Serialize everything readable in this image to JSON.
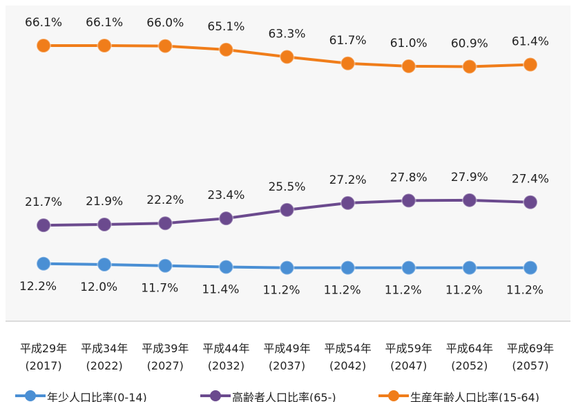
{
  "chart_data": {
    "type": "line",
    "categories": [
      "平成29年\n(2017)",
      "平成34年\n(2022)",
      "平成39年\n(2027)",
      "平成44年\n(2032)",
      "平成49年\n(2037)",
      "平成54年\n(2042)",
      "平成59年\n(2047)",
      "平成64年\n(2052)",
      "平成69年\n(2057)"
    ],
    "series": [
      {
        "name": "年少人口比率(0-14)",
        "color": "#4a8fd4",
        "values": [
          12.2,
          12.0,
          11.7,
          11.4,
          11.2,
          11.2,
          11.2,
          11.2,
          11.2
        ],
        "value_labels": [
          "12.2%",
          "12.0%",
          "11.7%",
          "11.4%",
          "11.2%",
          "11.2%",
          "11.2%",
          "11.2%",
          "11.2%"
        ]
      },
      {
        "name": "高齢者人口比率(65-)",
        "color": "#6b4a8e",
        "values": [
          21.7,
          21.9,
          22.2,
          23.4,
          25.5,
          27.2,
          27.8,
          27.9,
          27.4
        ],
        "value_labels": [
          "21.7%",
          "21.9%",
          "22.2%",
          "23.4%",
          "25.5%",
          "27.2%",
          "27.8%",
          "27.9%",
          "27.4%"
        ]
      },
      {
        "name": "生産年齢人口比率(15-64)",
        "color": "#f07d1a",
        "values": [
          66.1,
          66.1,
          66.0,
          65.1,
          63.3,
          61.7,
          61.0,
          60.9,
          61.4
        ],
        "value_labels": [
          "66.1%",
          "66.1%",
          "66.0%",
          "65.1%",
          "63.3%",
          "61.7%",
          "61.0%",
          "60.9%",
          "61.4%"
        ]
      }
    ],
    "ylim": [
      -2,
      76
    ],
    "legend": "bottom"
  }
}
